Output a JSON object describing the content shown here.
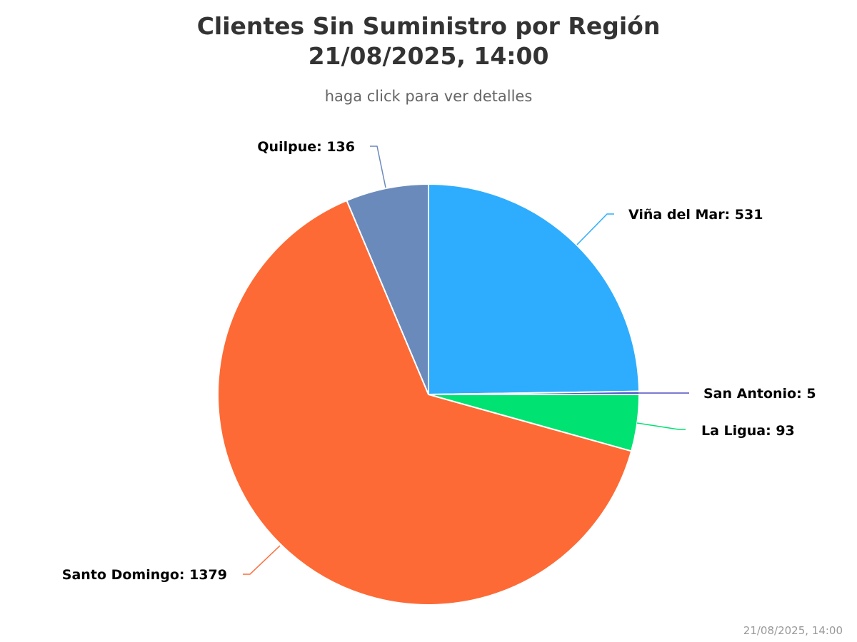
{
  "chart": {
    "title_line1": "Clientes Sin Suministro por Región",
    "title_line2": "21/08/2025, 14:00",
    "subtitle": "haga click para ver detalles",
    "credit": "21/08/2025, 14:00"
  },
  "chart_data": {
    "type": "pie",
    "title": "Clientes Sin Suministro por Región 21/08/2025, 14:00",
    "subtitle": "haga click para ver detalles",
    "slices": [
      {
        "name": "Viña del Mar",
        "value": 531,
        "color": "#2eadfe"
      },
      {
        "name": "San Antonio",
        "value": 5,
        "color": "#544fc5"
      },
      {
        "name": "La Ligua",
        "value": 93,
        "color": "#00e272"
      },
      {
        "name": "Santo Domingo",
        "value": 1379,
        "color": "#fe6a35"
      },
      {
        "name": "Quilpue",
        "value": 136,
        "color": "#6b8abc"
      }
    ],
    "label_format": "{name}: {value}",
    "start_angle_deg": 0,
    "legend": "none"
  }
}
